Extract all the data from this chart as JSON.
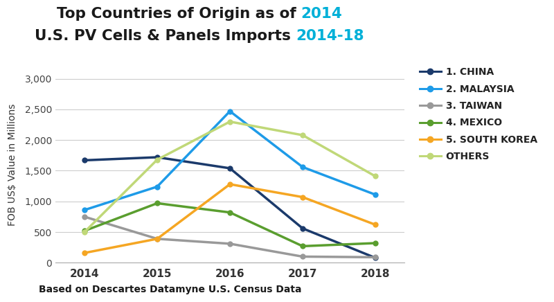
{
  "years": [
    2014,
    2015,
    2016,
    2017,
    2018
  ],
  "series_order": [
    "1. CHINA",
    "2. MALAYSIA",
    "3. TAIWAN",
    "4. MEXICO",
    "5. SOUTH KOREA",
    "OTHERS"
  ],
  "series": {
    "1. CHINA": [
      1670,
      1720,
      1540,
      560,
      80
    ],
    "2. MALAYSIA": [
      860,
      1240,
      2470,
      1560,
      1110
    ],
    "3. TAIWAN": [
      750,
      390,
      310,
      100,
      90
    ],
    "4. MEXICO": [
      520,
      970,
      820,
      270,
      320
    ],
    "5. SOUTH KOREA": [
      160,
      390,
      1280,
      1070,
      620
    ],
    "OTHERS": [
      500,
      1680,
      2300,
      2080,
      1410
    ]
  },
  "colors": {
    "1. CHINA": "#1b3a6b",
    "2. MALAYSIA": "#1e9be8",
    "3. TAIWAN": "#999999",
    "4. MEXICO": "#5a9e2f",
    "5. SOUTH KOREA": "#f5a623",
    "OTHERS": "#c0d878"
  },
  "title_text1": "Top Countries of Origin as of ",
  "title_highlight1": "2014",
  "title_text2": "U.S. PV Cells & Panels Imports ",
  "title_highlight2": "2014-18",
  "title_color_normal": "#1a1a1a",
  "title_color_highlight": "#00b0d8",
  "ylabel": "FOB US$ Value in Millions",
  "footnote": "Based on Descartes Datamyne U.S. Census Data",
  "ylim": [
    0,
    3200
  ],
  "yticks": [
    0,
    500,
    1000,
    1500,
    2000,
    2500,
    3000
  ],
  "background_color": "#ffffff",
  "grid_color": "#cccccc"
}
